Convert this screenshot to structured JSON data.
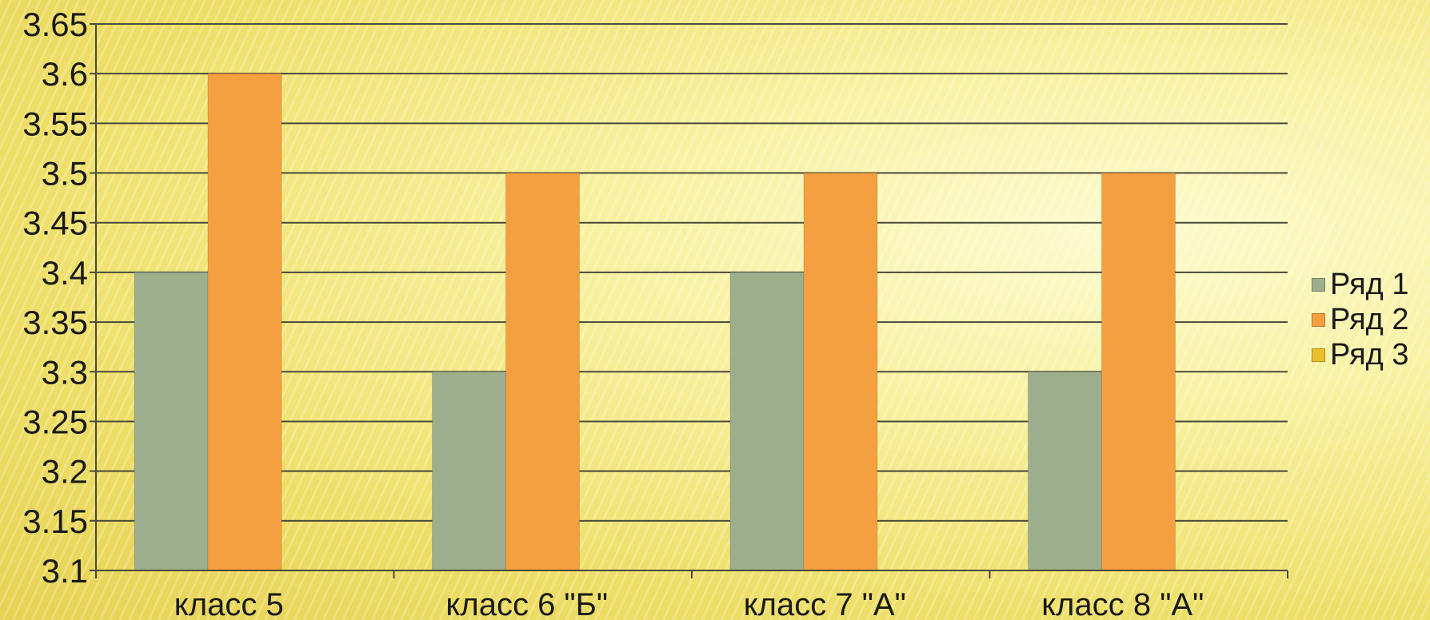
{
  "chart_data": {
    "type": "bar",
    "categories": [
      "класс 5",
      "класс 6 \"Б\"",
      "класс 7 \"А\"",
      "класс 8 \"А\""
    ],
    "series": [
      {
        "name": "Ряд 1",
        "values": [
          3.4,
          3.3,
          3.4,
          3.3
        ],
        "color": "#9cae8c"
      },
      {
        "name": "Ряд 2",
        "values": [
          3.6,
          3.5,
          3.5,
          3.5
        ],
        "color": "#f5a040"
      },
      {
        "name": "Ряд 3",
        "values": [
          null,
          null,
          null,
          null
        ],
        "color": "#e8c02a"
      }
    ],
    "ylim": [
      3.1,
      3.65
    ],
    "yticks": [
      "3.1",
      "3.15",
      "3.2",
      "3.25",
      "3.3",
      "3.35",
      "3.4",
      "3.45",
      "3.5",
      "3.55",
      "3.6",
      "3.65"
    ],
    "grid": true,
    "legend": "right",
    "title": "",
    "xlabel": "",
    "ylabel": ""
  }
}
